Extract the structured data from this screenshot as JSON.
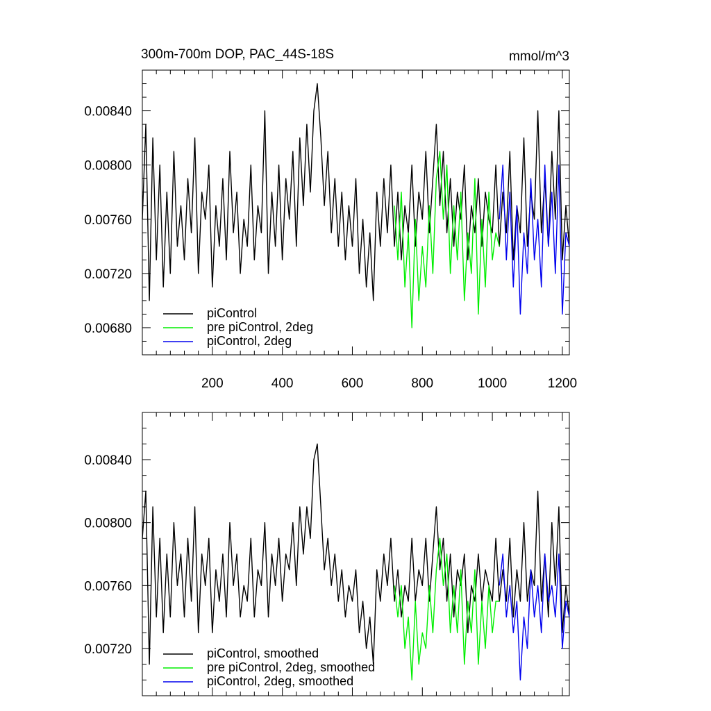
{
  "figure": {
    "title": "300m-700m DOP, PAC_44S-18S",
    "units": "mmol/m^3"
  },
  "chart_data": [
    {
      "type": "line",
      "panel": "top",
      "title": "300m-700m DOP, PAC_44S-18S",
      "units": "mmol/m^3",
      "xlim": [
        0,
        1220
      ],
      "ylim": [
        0.0066,
        0.0087
      ],
      "x_ticks": [
        200,
        400,
        600,
        800,
        1000,
        1200
      ],
      "x_tick_labels": [
        "200",
        "400",
        "600",
        "800",
        "1000",
        "1200"
      ],
      "y_ticks": [
        0.0068,
        0.0072,
        0.0076,
        0.008,
        0.0084
      ],
      "y_tick_labels": [
        "0.00680",
        "0.00720",
        "0.00760",
        "0.00800",
        "0.00840"
      ],
      "legend_position": "bottom-left",
      "series": [
        {
          "name": "piControl",
          "color": "#000000",
          "x": [
            0,
            10,
            20,
            30,
            40,
            50,
            60,
            70,
            80,
            90,
            100,
            110,
            120,
            130,
            140,
            150,
            160,
            170,
            180,
            190,
            200,
            210,
            220,
            230,
            240,
            250,
            260,
            270,
            280,
            290,
            300,
            310,
            320,
            330,
            340,
            350,
            360,
            370,
            380,
            390,
            400,
            410,
            420,
            430,
            440,
            450,
            460,
            470,
            480,
            490,
            500,
            510,
            520,
            530,
            540,
            550,
            560,
            570,
            580,
            590,
            600,
            610,
            620,
            630,
            640,
            650,
            660,
            670,
            680,
            690,
            700,
            710,
            720,
            730,
            740,
            750,
            760,
            770,
            780,
            790,
            800,
            810,
            820,
            830,
            840,
            850,
            860,
            870,
            880,
            890,
            900,
            910,
            920,
            930,
            940,
            950,
            960,
            970,
            980,
            990,
            1000,
            1010,
            1020,
            1030,
            1040,
            1050,
            1060,
            1070,
            1080,
            1090,
            1100,
            1110,
            1120,
            1130,
            1140,
            1150,
            1160,
            1170,
            1180,
            1190,
            1200,
            1210,
            1220
          ],
          "values": [
            0.0076,
            0.0083,
            0.007,
            0.0082,
            0.0073,
            0.008,
            0.0071,
            0.0078,
            0.0072,
            0.0081,
            0.0074,
            0.0077,
            0.0073,
            0.0079,
            0.0075,
            0.0082,
            0.0072,
            0.0078,
            0.0076,
            0.008,
            0.0071,
            0.0077,
            0.0074,
            0.0079,
            0.0073,
            0.0081,
            0.0075,
            0.0078,
            0.0072,
            0.0076,
            0.0074,
            0.008,
            0.0073,
            0.0077,
            0.0075,
            0.0084,
            0.0072,
            0.0078,
            0.0074,
            0.008,
            0.0073,
            0.0079,
            0.0076,
            0.0081,
            0.0074,
            0.0082,
            0.0077,
            0.0083,
            0.0078,
            0.0084,
            0.0086,
            0.0082,
            0.0077,
            0.0081,
            0.0075,
            0.0079,
            0.0074,
            0.0078,
            0.0073,
            0.0077,
            0.0074,
            0.0079,
            0.0072,
            0.0076,
            0.0071,
            0.0075,
            0.007,
            0.0078,
            0.0074,
            0.0079,
            0.0075,
            0.008,
            0.0074,
            0.0078,
            0.0073,
            0.0077,
            0.0075,
            0.008,
            0.0074,
            0.0078,
            0.0076,
            0.0081,
            0.0075,
            0.0079,
            0.0083,
            0.0077,
            0.0081,
            0.0075,
            0.0079,
            0.0074,
            0.0078,
            0.0076,
            0.008,
            0.0073,
            0.0077,
            0.0075,
            0.0079,
            0.0074,
            0.0078,
            0.0076,
            0.0075,
            0.008,
            0.0074,
            0.0078,
            0.0075,
            0.0081,
            0.0073,
            0.0077,
            0.0075,
            0.0082,
            0.0074,
            0.0078,
            0.0076,
            0.0084,
            0.0075,
            0.0079,
            0.0074,
            0.0081,
            0.0076,
            0.0084,
            0.0073,
            0.0077,
            0.0074
          ]
        },
        {
          "name": "pre piControl, 2deg",
          "color": "#00ee00",
          "x": [
            720,
            730,
            740,
            750,
            760,
            770,
            780,
            790,
            800,
            810,
            820,
            830,
            840,
            850,
            860,
            870,
            880,
            890,
            900,
            910,
            920,
            930,
            940,
            950,
            960,
            970,
            980,
            990,
            1000,
            1010,
            1020
          ],
          "values": [
            0.0077,
            0.0073,
            0.0078,
            0.0071,
            0.0075,
            0.0068,
            0.0076,
            0.007,
            0.0074,
            0.0071,
            0.0077,
            0.0072,
            0.0079,
            0.0081,
            0.0076,
            0.008,
            0.0072,
            0.0077,
            0.0073,
            0.0078,
            0.007,
            0.0075,
            0.0072,
            0.0079,
            0.0069,
            0.0076,
            0.0071,
            0.0078,
            0.0073,
            0.0075,
            0.0074
          ]
        },
        {
          "name": "piControl, 2deg",
          "color": "#0000ee",
          "x": [
            1020,
            1030,
            1040,
            1050,
            1060,
            1070,
            1080,
            1090,
            1100,
            1110,
            1120,
            1130,
            1140,
            1150,
            1160,
            1170,
            1180,
            1190,
            1200,
            1210,
            1220
          ],
          "values": [
            0.0076,
            0.008,
            0.0073,
            0.0078,
            0.0071,
            0.0077,
            0.0069,
            0.0075,
            0.0072,
            0.0079,
            0.0073,
            0.0076,
            0.0071,
            0.008,
            0.0074,
            0.0078,
            0.0072,
            0.008,
            0.0069,
            0.0075,
            0.0074
          ]
        }
      ]
    },
    {
      "type": "line",
      "panel": "bottom",
      "xlim": [
        0,
        1220
      ],
      "ylim": [
        0.0069,
        0.0087
      ],
      "x_ticks": [
        200,
        400,
        600,
        800,
        1000,
        1200
      ],
      "y_ticks": [
        0.0072,
        0.0076,
        0.008,
        0.0084
      ],
      "y_tick_labels": [
        "0.00720",
        "0.00760",
        "0.00800",
        "0.00840"
      ],
      "legend_position": "bottom-left",
      "series": [
        {
          "name": "piControl, smoothed",
          "color": "#000000",
          "x": [
            0,
            10,
            20,
            30,
            40,
            50,
            60,
            70,
            80,
            90,
            100,
            110,
            120,
            130,
            140,
            150,
            160,
            170,
            180,
            190,
            200,
            210,
            220,
            230,
            240,
            250,
            260,
            270,
            280,
            290,
            300,
            310,
            320,
            330,
            340,
            350,
            360,
            370,
            380,
            390,
            400,
            410,
            420,
            430,
            440,
            450,
            460,
            470,
            480,
            490,
            500,
            510,
            520,
            530,
            540,
            550,
            560,
            570,
            580,
            590,
            600,
            610,
            620,
            630,
            640,
            650,
            660,
            670,
            680,
            690,
            700,
            710,
            720,
            730,
            740,
            750,
            760,
            770,
            780,
            790,
            800,
            810,
            820,
            830,
            840,
            850,
            860,
            870,
            880,
            890,
            900,
            910,
            920,
            930,
            940,
            950,
            960,
            970,
            980,
            990,
            1000,
            1010,
            1020,
            1030,
            1040,
            1050,
            1060,
            1070,
            1080,
            1090,
            1100,
            1110,
            1120,
            1130,
            1140,
            1150,
            1160,
            1170,
            1180,
            1190,
            1200,
            1210,
            1220
          ],
          "values": [
            0.0079,
            0.0082,
            0.0071,
            0.0081,
            0.0074,
            0.0079,
            0.0073,
            0.0078,
            0.0074,
            0.008,
            0.0076,
            0.0078,
            0.0074,
            0.0079,
            0.0075,
            0.0081,
            0.0073,
            0.0078,
            0.0076,
            0.0079,
            0.0073,
            0.0077,
            0.0075,
            0.0078,
            0.0074,
            0.008,
            0.0076,
            0.0078,
            0.0074,
            0.0076,
            0.0075,
            0.0079,
            0.0074,
            0.0077,
            0.0076,
            0.008,
            0.0074,
            0.0078,
            0.0076,
            0.0079,
            0.0075,
            0.0078,
            0.0077,
            0.008,
            0.0076,
            0.0081,
            0.0078,
            0.0081,
            0.0079,
            0.0084,
            0.0085,
            0.0081,
            0.0077,
            0.0079,
            0.0076,
            0.0078,
            0.0075,
            0.0077,
            0.0074,
            0.0076,
            0.0075,
            0.0077,
            0.0073,
            0.0075,
            0.0072,
            0.0074,
            0.0071,
            0.0077,
            0.0075,
            0.0078,
            0.0076,
            0.0079,
            0.0075,
            0.0077,
            0.0074,
            0.0076,
            0.0075,
            0.0079,
            0.0075,
            0.0077,
            0.0076,
            0.0079,
            0.0075,
            0.0078,
            0.0081,
            0.0077,
            0.0079,
            0.0075,
            0.0078,
            0.0074,
            0.0077,
            0.0076,
            0.0078,
            0.0073,
            0.0076,
            0.0075,
            0.0078,
            0.0075,
            0.0077,
            0.0076,
            0.0075,
            0.0079,
            0.0075,
            0.0077,
            0.0075,
            0.0079,
            0.0074,
            0.0077,
            0.0075,
            0.008,
            0.0075,
            0.0077,
            0.0076,
            0.0082,
            0.0075,
            0.0078,
            0.0074,
            0.008,
            0.0076,
            0.0081,
            0.0073,
            0.0076,
            0.0074
          ]
        },
        {
          "name": "pre piControl, 2deg, smoothed",
          "color": "#00ee00",
          "x": [
            720,
            730,
            740,
            750,
            760,
            770,
            780,
            790,
            800,
            810,
            820,
            830,
            840,
            850,
            860,
            870,
            880,
            890,
            900,
            910,
            920,
            930,
            940,
            950,
            960,
            970,
            980,
            990,
            1000,
            1010,
            1020
          ],
          "values": [
            0.0076,
            0.0074,
            0.0076,
            0.0072,
            0.0074,
            0.007,
            0.0075,
            0.0071,
            0.0073,
            0.0072,
            0.0076,
            0.0073,
            0.0077,
            0.0079,
            0.0076,
            0.0078,
            0.0073,
            0.0076,
            0.0073,
            0.0077,
            0.0071,
            0.0075,
            0.0073,
            0.0077,
            0.0071,
            0.0075,
            0.0072,
            0.0076,
            0.0073,
            0.0075,
            0.0075
          ]
        },
        {
          "name": "piControl, 2deg, smoothed",
          "color": "#0000ee",
          "x": [
            1020,
            1030,
            1040,
            1050,
            1060,
            1070,
            1080,
            1090,
            1100,
            1110,
            1120,
            1130,
            1140,
            1150,
            1160,
            1170,
            1180,
            1190,
            1200,
            1210,
            1220
          ],
          "values": [
            0.0076,
            0.0078,
            0.0074,
            0.0076,
            0.0073,
            0.0075,
            0.007,
            0.0074,
            0.0072,
            0.0077,
            0.0074,
            0.0076,
            0.0073,
            0.0078,
            0.0075,
            0.0076,
            0.0074,
            0.0078,
            0.0072,
            0.0075,
            0.0074
          ]
        }
      ]
    }
  ]
}
